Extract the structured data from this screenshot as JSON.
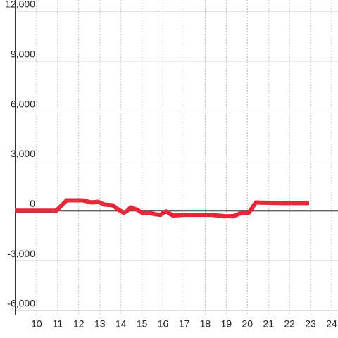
{
  "chart_data": {
    "type": "line",
    "x": [
      9,
      10.93,
      11.43,
      12.2,
      12.6,
      12.93,
      13.2,
      13.6,
      13.87,
      14.13,
      14.27,
      14.47,
      14.8,
      15,
      15.33,
      15.6,
      15.87,
      16.13,
      16.47,
      17,
      18.27,
      18.93,
      19.33,
      19.73,
      20.07,
      20.4,
      21.6,
      22.93
    ],
    "series": [
      {
        "color": "#e8263a",
        "values": [
          0,
          0,
          625,
          625,
          500,
          540,
          375,
          333,
          83,
          -125,
          -40,
          208,
          40,
          -125,
          -125,
          -208,
          -250,
          -40,
          -290,
          -250,
          -250,
          -333,
          -333,
          -125,
          -125,
          500,
          460,
          460
        ]
      }
    ],
    "xlim": [
      9,
      24.3
    ],
    "xticks": [
      10,
      11,
      12,
      13,
      14,
      15,
      16,
      17,
      18,
      19,
      20,
      21,
      22,
      23,
      24
    ],
    "ylim": [
      -6300,
      12000
    ],
    "yticks": [
      {
        "value": -6000,
        "label": "-6,000"
      },
      {
        "value": -3000,
        "label": "-3,000"
      },
      0,
      {
        "value": 3000,
        "label": "3,000"
      },
      {
        "value": 6000,
        "label": "6,000"
      },
      {
        "value": 9000,
        "label": "9,000"
      },
      {
        "value": 12000,
        "label": "12,000"
      }
    ],
    "grid": true
  }
}
